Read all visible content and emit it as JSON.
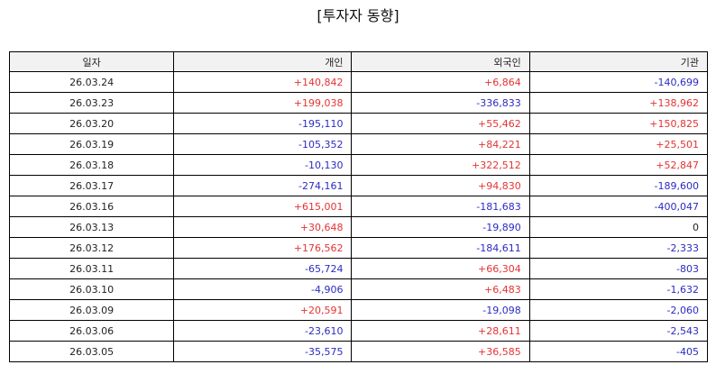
{
  "title": "[투자자 동향]",
  "headers": [
    "일자",
    "개인",
    "외국인",
    "기관"
  ],
  "rows": [
    [
      "26.03.24",
      "+140,842",
      "+6,864",
      "-140,699"
    ],
    [
      "26.03.23",
      "+199,038",
      "-336,833",
      "+138,962"
    ],
    [
      "26.03.20",
      "-195,110",
      "+55,462",
      "+150,825"
    ],
    [
      "26.03.19",
      "-105,352",
      "+84,221",
      "+25,501"
    ],
    [
      "26.03.18",
      "-10,130",
      "+322,512",
      "+52,847"
    ],
    [
      "26.03.17",
      "-274,161",
      "+94,830",
      "-189,600"
    ],
    [
      "26.03.16",
      "+615,001",
      "-181,683",
      "-400,047"
    ],
    [
      "26.03.13",
      "+30,648",
      "-19,890",
      "0"
    ],
    [
      "26.03.12",
      "+176,562",
      "-184,611",
      "-2,333"
    ],
    [
      "26.03.11",
      "-65,724",
      "+66,304",
      "-803"
    ],
    [
      "26.03.10",
      "-4,906",
      "+6,483",
      "-1,632"
    ],
    [
      "26.03.09",
      "+20,591",
      "-19,098",
      "-2,060"
    ],
    [
      "26.03.06",
      "-23,610",
      "+28,611",
      "-2,543"
    ],
    [
      "26.03.05",
      "-35,575",
      "+36,585",
      "-405"
    ]
  ],
  "colors": {
    "positive": "#e53333",
    "negative": "#2b2bc2",
    "neutral": "#222222",
    "header_bg": "#f2f2f2"
  }
}
